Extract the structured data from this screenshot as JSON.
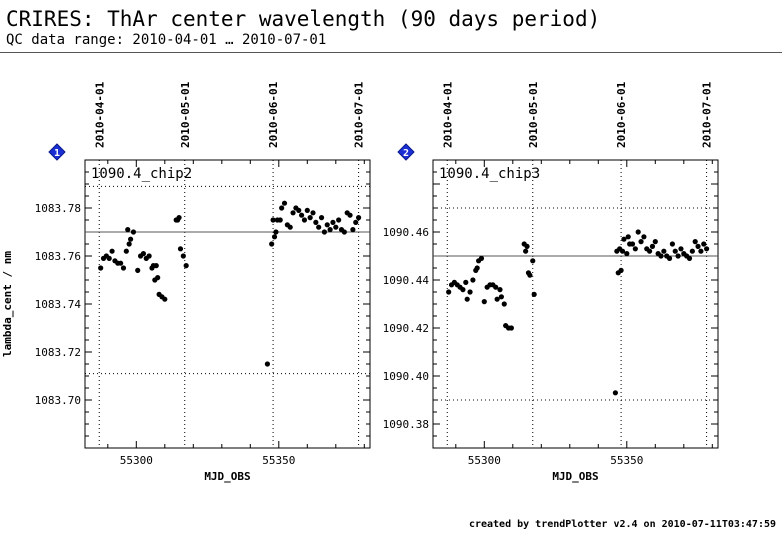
{
  "header": {
    "title": "CRIRES: ThAr center wavelength (90 days period)",
    "subtitle": "QC data range: 2010-04-01 … 2010-07-01"
  },
  "footer": {
    "text": "created by trendPlotter v2.4 on 2010-07-11T03:47:59"
  },
  "colors": {
    "marker_badge": "#1a2fd4",
    "points": "#000000",
    "mean_line": "#000000",
    "limit_line": "#000000"
  },
  "chart_data": [
    {
      "type": "scatter",
      "badge": "1",
      "title": "1090.4_chip2",
      "xlabel": "MJD_OBS",
      "ylabel": "lambda_cent / nm",
      "xlim": [
        55282,
        55382
      ],
      "ylim": [
        1083.68,
        1083.8
      ],
      "xticks": [
        55300,
        55350
      ],
      "yticks": [
        1083.7,
        1083.72,
        1083.74,
        1083.76,
        1083.78
      ],
      "ytick_labels": [
        "1083.70",
        "1083.72",
        "1083.74",
        "1083.76",
        "1083.78"
      ],
      "date_ticks": [
        {
          "mjd": 55287,
          "label": "2010-04-01"
        },
        {
          "mjd": 55317,
          "label": "2010-05-01"
        },
        {
          "mjd": 55348,
          "label": "2010-06-01"
        },
        {
          "mjd": 55378,
          "label": "2010-07-01"
        }
      ],
      "mean": 1083.77,
      "limits": [
        1083.711,
        1083.789
      ],
      "points": [
        [
          55287.5,
          1083.755
        ],
        [
          55288.5,
          1083.759
        ],
        [
          55289.5,
          1083.76
        ],
        [
          55290.5,
          1083.759
        ],
        [
          55291.5,
          1083.762
        ],
        [
          55292.5,
          1083.758
        ],
        [
          55293.5,
          1083.757
        ],
        [
          55294.5,
          1083.757
        ],
        [
          55295.5,
          1083.755
        ],
        [
          55296.5,
          1083.762
        ],
        [
          55297.0,
          1083.771
        ],
        [
          55297.5,
          1083.765
        ],
        [
          55298.0,
          1083.767
        ],
        [
          55299.0,
          1083.77
        ],
        [
          55300.5,
          1083.754
        ],
        [
          55301.5,
          1083.76
        ],
        [
          55302.5,
          1083.761
        ],
        [
          55303.5,
          1083.759
        ],
        [
          55304.5,
          1083.76
        ],
        [
          55305.5,
          1083.755
        ],
        [
          55306.0,
          1083.756
        ],
        [
          55306.5,
          1083.75
        ],
        [
          55307.0,
          1083.756
        ],
        [
          55307.5,
          1083.751
        ],
        [
          55308.0,
          1083.744
        ],
        [
          55309.0,
          1083.743
        ],
        [
          55310.0,
          1083.742
        ],
        [
          55314.0,
          1083.775
        ],
        [
          55314.5,
          1083.775
        ],
        [
          55315.0,
          1083.776
        ],
        [
          55315.5,
          1083.763
        ],
        [
          55316.5,
          1083.76
        ],
        [
          55317.5,
          1083.756
        ],
        [
          55346.0,
          1083.715
        ],
        [
          55347.5,
          1083.765
        ],
        [
          55348.0,
          1083.775
        ],
        [
          55348.5,
          1083.768
        ],
        [
          55349.0,
          1083.77
        ],
        [
          55349.5,
          1083.775
        ],
        [
          55350.5,
          1083.775
        ],
        [
          55351.0,
          1083.78
        ],
        [
          55352.0,
          1083.782
        ],
        [
          55353.0,
          1083.773
        ],
        [
          55354.0,
          1083.772
        ],
        [
          55355.0,
          1083.778
        ],
        [
          55356.0,
          1083.78
        ],
        [
          55357.0,
          1083.779
        ],
        [
          55358.0,
          1083.777
        ],
        [
          55359.0,
          1083.775
        ],
        [
          55360.0,
          1083.779
        ],
        [
          55361.0,
          1083.776
        ],
        [
          55362.0,
          1083.778
        ],
        [
          55363.0,
          1083.774
        ],
        [
          55364.0,
          1083.772
        ],
        [
          55365.0,
          1083.776
        ],
        [
          55366.0,
          1083.77
        ],
        [
          55367.0,
          1083.773
        ],
        [
          55368.0,
          1083.771
        ],
        [
          55369.0,
          1083.774
        ],
        [
          55370.0,
          1083.772
        ],
        [
          55371.0,
          1083.775
        ],
        [
          55372.0,
          1083.771
        ],
        [
          55373.0,
          1083.77
        ],
        [
          55374.0,
          1083.778
        ],
        [
          55375.0,
          1083.777
        ],
        [
          55376.0,
          1083.771
        ],
        [
          55377.0,
          1083.774
        ],
        [
          55378.0,
          1083.776
        ]
      ]
    },
    {
      "type": "scatter",
      "badge": "2",
      "title": "1090.4_chip3",
      "xlabel": "MJD_OBS",
      "ylabel": "",
      "xlim": [
        55282,
        55382
      ],
      "ylim": [
        1090.37,
        1090.49
      ],
      "xticks": [
        55300,
        55350
      ],
      "yticks": [
        1090.38,
        1090.4,
        1090.42,
        1090.44,
        1090.46
      ],
      "ytick_labels": [
        "1090.38",
        "1090.40",
        "1090.42",
        "1090.44",
        "1090.46"
      ],
      "date_ticks": [
        {
          "mjd": 55287,
          "label": "2010-04-01"
        },
        {
          "mjd": 55317,
          "label": "2010-05-01"
        },
        {
          "mjd": 55348,
          "label": "2010-06-01"
        },
        {
          "mjd": 55378,
          "label": "2010-07-01"
        }
      ],
      "mean": 1090.45,
      "limits": [
        1090.39,
        1090.47
      ],
      "points": [
        [
          55287.5,
          1090.435
        ],
        [
          55288.5,
          1090.438
        ],
        [
          55289.5,
          1090.439
        ],
        [
          55290.5,
          1090.438
        ],
        [
          55291.5,
          1090.437
        ],
        [
          55292.5,
          1090.436
        ],
        [
          55293.5,
          1090.439
        ],
        [
          55294.0,
          1090.432
        ],
        [
          55295.0,
          1090.435
        ],
        [
          55296.0,
          1090.44
        ],
        [
          55297.0,
          1090.444
        ],
        [
          55297.5,
          1090.445
        ],
        [
          55298.0,
          1090.448
        ],
        [
          55299.0,
          1090.449
        ],
        [
          55300.0,
          1090.431
        ],
        [
          55301.0,
          1090.437
        ],
        [
          55302.0,
          1090.438
        ],
        [
          55303.0,
          1090.438
        ],
        [
          55304.0,
          1090.437
        ],
        [
          55304.5,
          1090.432
        ],
        [
          55305.5,
          1090.436
        ],
        [
          55306.0,
          1090.433
        ],
        [
          55307.0,
          1090.43
        ],
        [
          55307.5,
          1090.421
        ],
        [
          55308.5,
          1090.42
        ],
        [
          55309.5,
          1090.42
        ],
        [
          55314.0,
          1090.455
        ],
        [
          55314.5,
          1090.452
        ],
        [
          55315.0,
          1090.454
        ],
        [
          55315.5,
          1090.443
        ],
        [
          55316.0,
          1090.442
        ],
        [
          55317.0,
          1090.448
        ],
        [
          55317.5,
          1090.434
        ],
        [
          55346.0,
          1090.393
        ],
        [
          55346.5,
          1090.452
        ],
        [
          55347.0,
          1090.443
        ],
        [
          55347.5,
          1090.453
        ],
        [
          55348.0,
          1090.444
        ],
        [
          55348.5,
          1090.452
        ],
        [
          55349.0,
          1090.457
        ],
        [
          55350.0,
          1090.451
        ],
        [
          55350.5,
          1090.458
        ],
        [
          55351.0,
          1090.455
        ],
        [
          55352.0,
          1090.455
        ],
        [
          55353.0,
          1090.453
        ],
        [
          55354.0,
          1090.46
        ],
        [
          55355.0,
          1090.456
        ],
        [
          55356.0,
          1090.458
        ],
        [
          55357.0,
          1090.453
        ],
        [
          55358.0,
          1090.452
        ],
        [
          55359.0,
          1090.454
        ],
        [
          55360.0,
          1090.456
        ],
        [
          55361.0,
          1090.451
        ],
        [
          55362.0,
          1090.45
        ],
        [
          55363.0,
          1090.452
        ],
        [
          55364.0,
          1090.45
        ],
        [
          55365.0,
          1090.449
        ],
        [
          55366.0,
          1090.455
        ],
        [
          55367.0,
          1090.452
        ],
        [
          55368.0,
          1090.45
        ],
        [
          55369.0,
          1090.453
        ],
        [
          55370.0,
          1090.451
        ],
        [
          55371.0,
          1090.45
        ],
        [
          55372.0,
          1090.449
        ],
        [
          55373.0,
          1090.452
        ],
        [
          55374.0,
          1090.456
        ],
        [
          55375.0,
          1090.454
        ],
        [
          55376.0,
          1090.452
        ],
        [
          55377.0,
          1090.455
        ],
        [
          55378.0,
          1090.453
        ]
      ]
    }
  ]
}
